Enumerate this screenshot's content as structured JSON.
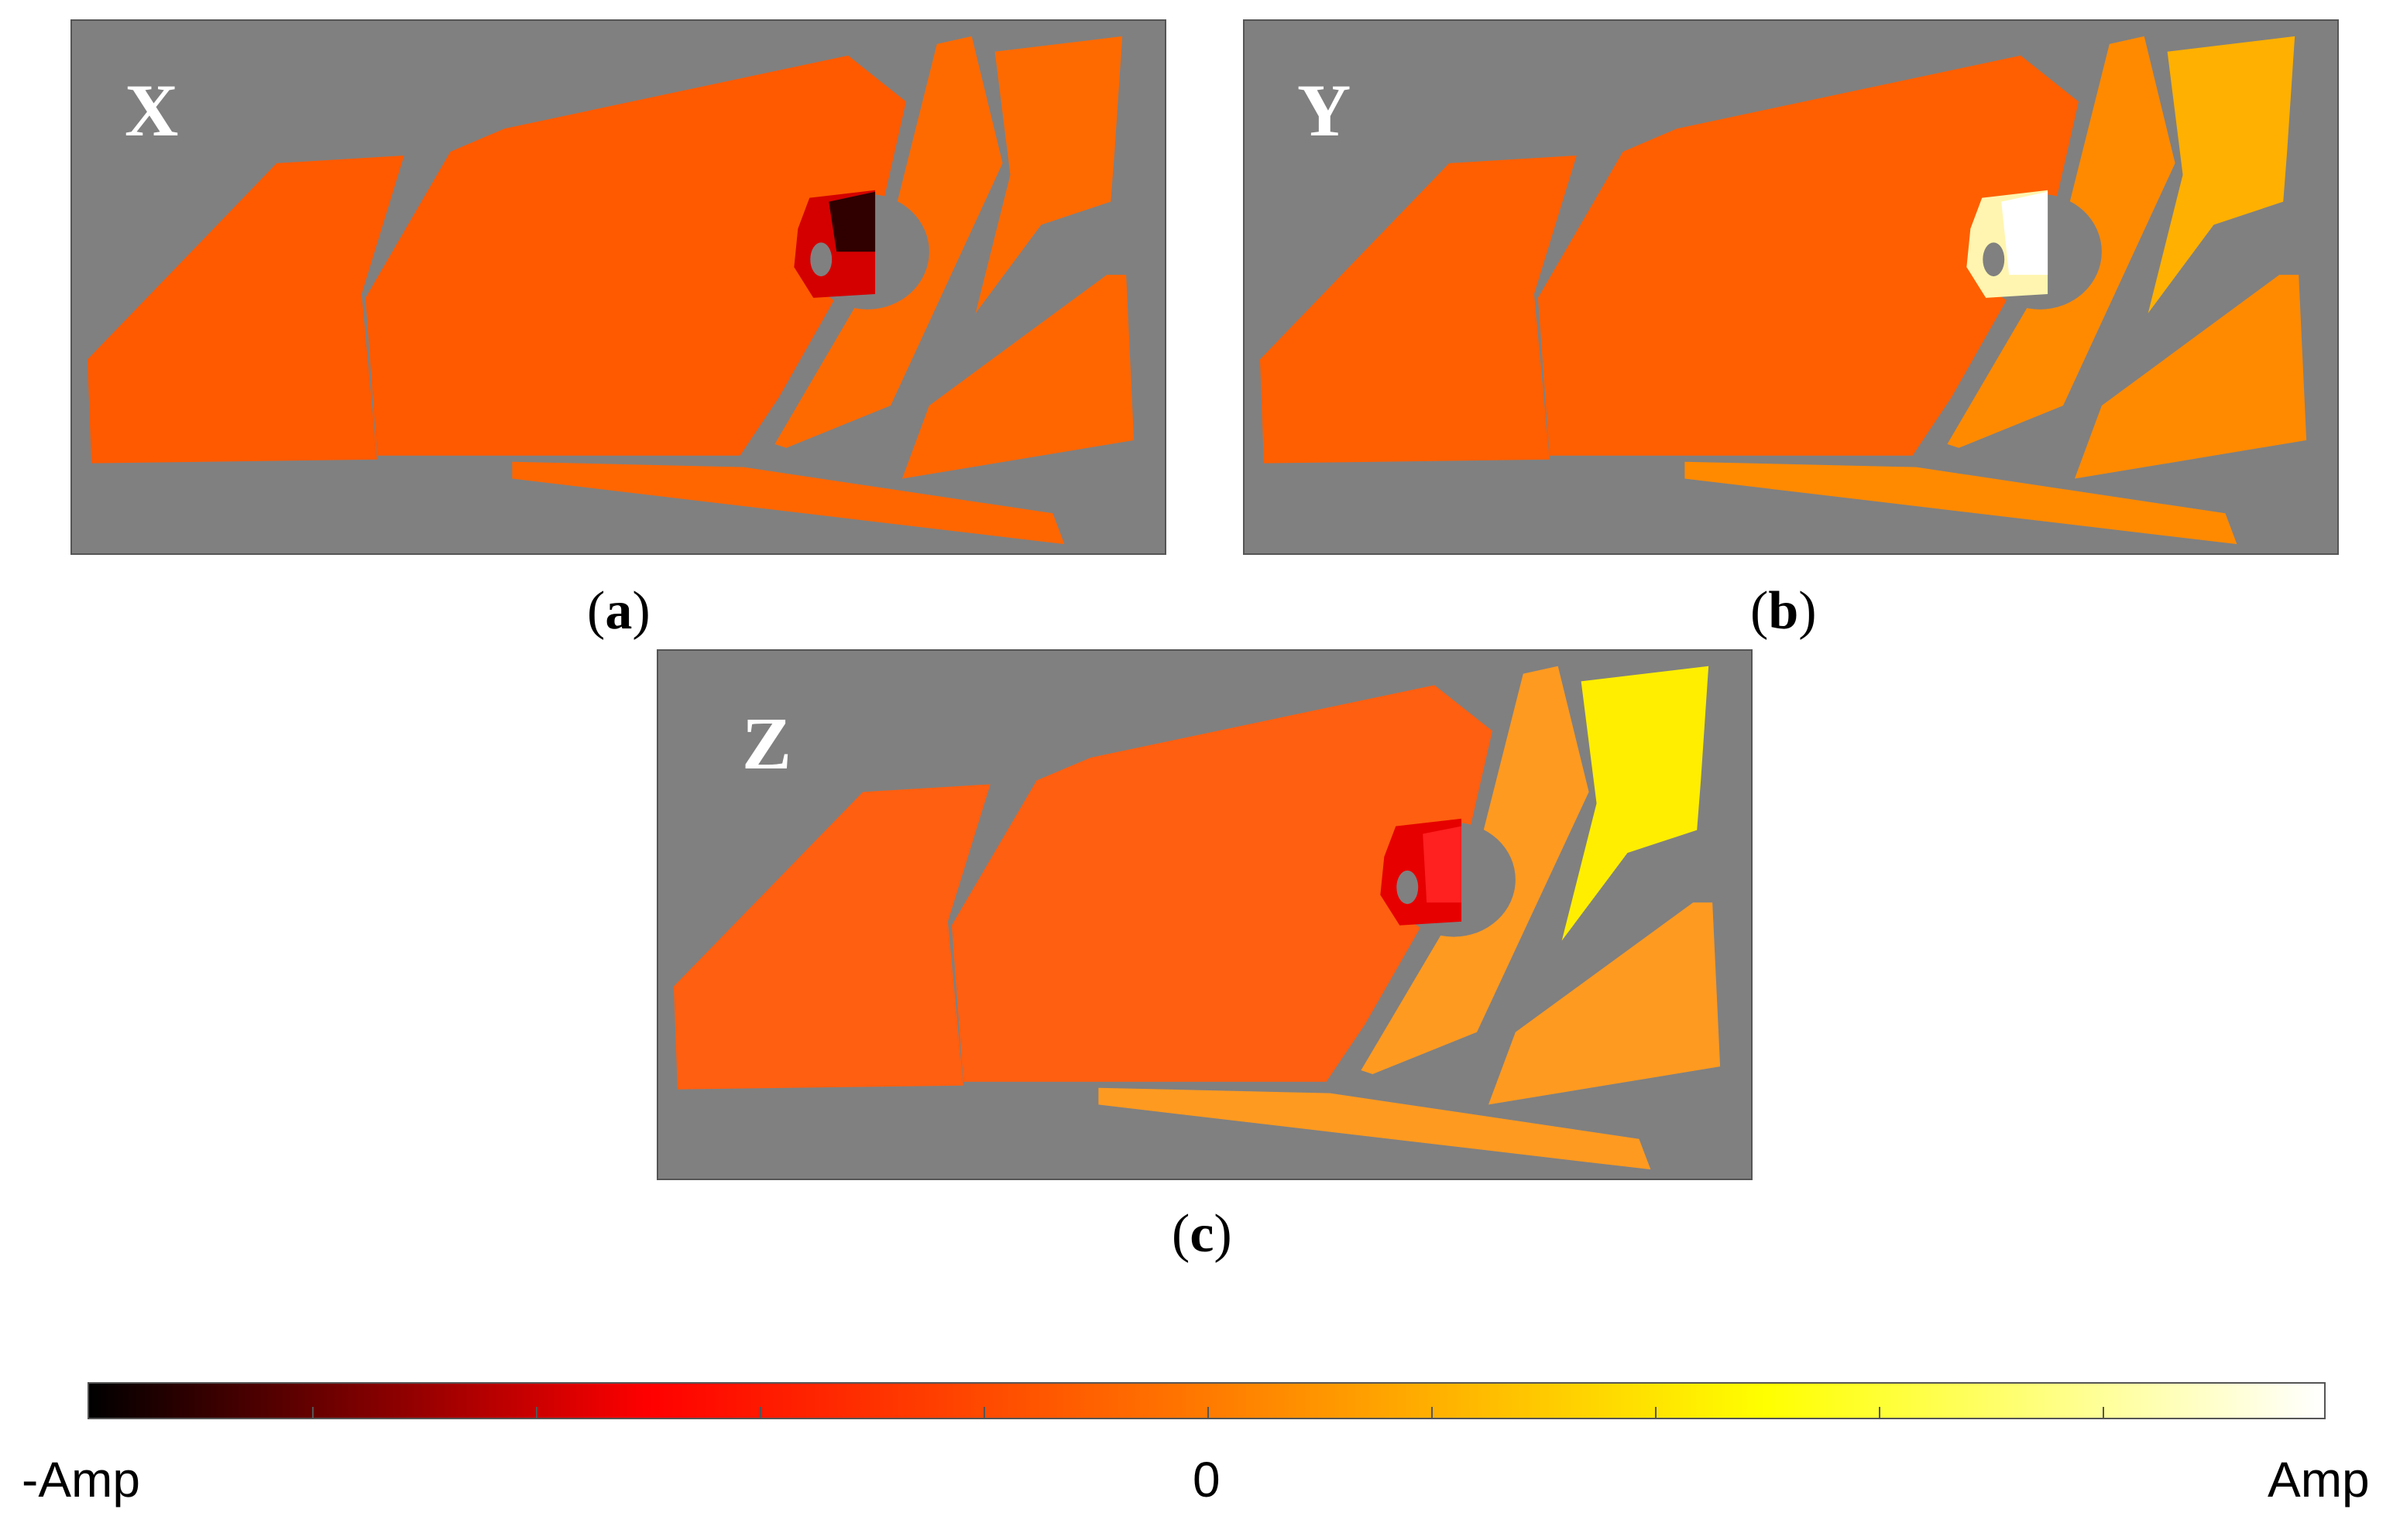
{
  "panels": [
    {
      "axis_label": "X",
      "caption_letter": "a",
      "color_main": "#ff5a00",
      "color_upper_right": "#ff6a00",
      "color_lower_strip": "#ff6600",
      "color_hole": "#d40000",
      "color_hole_dark": "#300000"
    },
    {
      "axis_label": "Y",
      "caption_letter": "b",
      "color_main": "#ff5f00",
      "color_upper_right": "#ffb000",
      "color_lower_strip": "#ff8a00",
      "color_hole": "#fff5b0",
      "color_hole_dark": "#ffffff"
    },
    {
      "axis_label": "Z",
      "caption_letter": "c",
      "color_main": "#ff5f10",
      "color_upper_right": "#ffee00",
      "color_lower_strip": "#ff9a20",
      "color_hole": "#e60000",
      "color_hole_dark": "#ff2020"
    }
  ],
  "colorbar": {
    "min_label": "-Amp",
    "mid_label": "0",
    "max_label": "Amp",
    "colormap": "hot",
    "stops": [
      "#000000",
      "#ff0000",
      "#ff7a00",
      "#ffff00",
      "#ffffff"
    ]
  }
}
